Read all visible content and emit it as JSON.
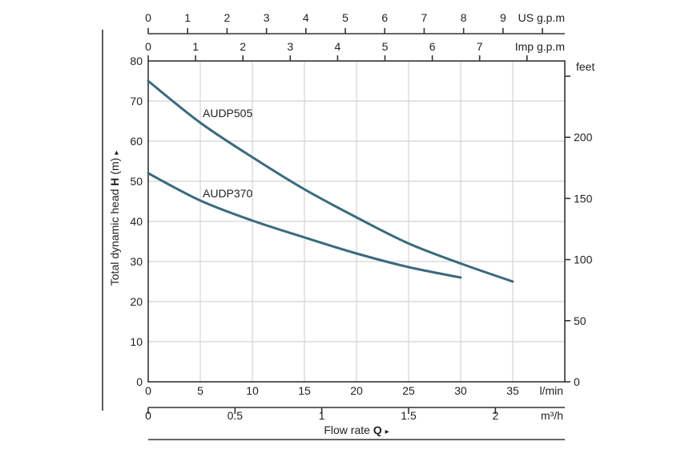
{
  "chart_data": {
    "type": "line",
    "title": "",
    "xlabel": "Flow rate",
    "xlabel_symbol": "Q",
    "xlabel_arrow": "▸",
    "ylabel": "Total dynamic head",
    "ylabel_symbol": "H",
    "ylabel_unit": "(m)",
    "ylabel_arrow": "▸",
    "xlim": [
      0,
      40
    ],
    "ylim": [
      0,
      80
    ],
    "x_unit": "l/min",
    "x_ticks": [
      0,
      5,
      10,
      15,
      20,
      25,
      30,
      35
    ],
    "y_ticks": [
      0,
      10,
      20,
      30,
      40,
      50,
      60,
      70,
      80
    ],
    "grid": true,
    "secondary_axes": {
      "us_gpm": {
        "label": "US g.p.m",
        "ticks": [
          0,
          1,
          2,
          3,
          4,
          5,
          6,
          7,
          8,
          9
        ],
        "factor_l_min": 3.785
      },
      "imp_gpm": {
        "label": "Imp g.p.m",
        "ticks": [
          0,
          1,
          2,
          3,
          4,
          5,
          6,
          7
        ],
        "factor_l_min": 4.546
      },
      "m3h": {
        "label": "m³/h",
        "ticks": [
          "0",
          "0.5",
          "1",
          "1.5",
          "2"
        ],
        "values": [
          0,
          0.5,
          1,
          1.5,
          2
        ],
        "factor_l_min": 16.667
      },
      "feet": {
        "label": "feet",
        "ticks": [
          0,
          50,
          100,
          150,
          200,
          250
        ],
        "tick_labels": [
          "0",
          "50",
          "100",
          "150",
          "200",
          ""
        ],
        "factor_m": 0.3048
      }
    },
    "series": [
      {
        "name": "AUDP505",
        "color": "#3a6a7e",
        "x": [
          0,
          5,
          10,
          15,
          20,
          25,
          30,
          35
        ],
        "y": [
          75,
          64.6,
          56,
          48,
          41,
          34.5,
          29.5,
          25
        ]
      },
      {
        "name": "AUDP370",
        "color": "#3a6a7e",
        "x": [
          0,
          5,
          10,
          15,
          20,
          25,
          30
        ],
        "y": [
          52,
          45.2,
          40.2,
          36,
          32,
          28.6,
          26
        ]
      }
    ],
    "annotations": [
      {
        "text": "AUDP505",
        "x": 5,
        "y": 67
      },
      {
        "text": "AUDP370",
        "x": 5,
        "y": 47
      }
    ]
  }
}
